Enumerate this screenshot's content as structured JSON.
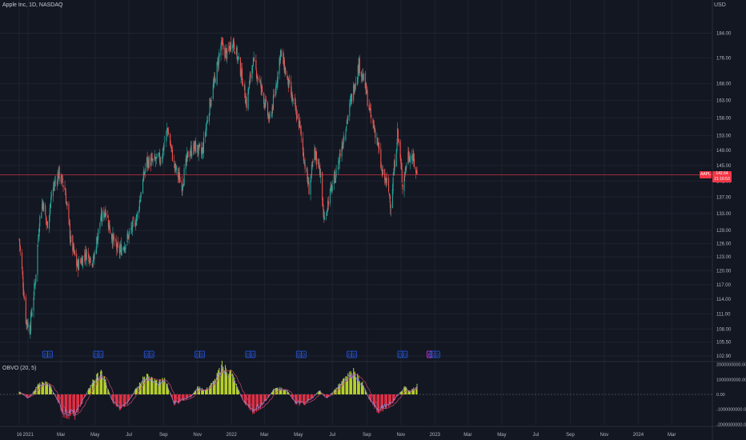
{
  "symbol_legend": "Apple Inc, 1D, NASDAQ",
  "currency": "USD",
  "current_price": {
    "ticker_badge": "AAPL",
    "value": "142.64",
    "time_left": "21:16:53",
    "level": 142.64
  },
  "price_axis": {
    "ticks": [
      "184.00",
      "176.00",
      "168.00",
      "163.00",
      "158.00",
      "153.00",
      "149.00",
      "145.00",
      "141.00",
      "137.00",
      "133.00",
      "129.00",
      "126.00",
      "123.00",
      "120.00",
      "117.00",
      "114.00",
      "111.00",
      "108.00",
      "105.50",
      "102.90"
    ]
  },
  "indicator": {
    "legend": "OBVO (20, 5)",
    "ticks": [
      "2000000000.00",
      "1000000000.00",
      "0.00",
      "-1000000000.00",
      "-2000000000.00"
    ]
  },
  "time_axis": {
    "labels": [
      "16",
      "2021",
      "Mar",
      "May",
      "Jul",
      "Sep",
      "Nov",
      "2022",
      "Mar",
      "May",
      "Jul",
      "Sep",
      "Nov",
      "2023",
      "Mar",
      "May",
      "Jul",
      "Sep",
      "Nov",
      "2024",
      "Mar"
    ]
  },
  "event_markers": [
    {
      "type": "dividend",
      "label": "D"
    },
    {
      "type": "dividend",
      "label": "D"
    },
    {
      "type": "dividend",
      "label": "D"
    },
    {
      "type": "dividend",
      "label": "D"
    },
    {
      "type": "dividend",
      "label": "D"
    },
    {
      "type": "dividend",
      "label": "D"
    },
    {
      "type": "dividend",
      "label": "D"
    },
    {
      "type": "dividend",
      "label": "D"
    },
    {
      "type": "dividend",
      "label": "D"
    },
    {
      "type": "earnings",
      "label": "E"
    }
  ],
  "colors": {
    "background": "#131722",
    "up": "#26a69a",
    "down": "#ef5350",
    "price_line": "#f23645",
    "osc_positive": "#b7d12a",
    "osc_negative": "#e03045",
    "fast_line": "#8f8bd8",
    "slow_line": "#c8476a",
    "dividend_marker": "#2962ff",
    "earnings_marker": "#e040fb"
  },
  "chart_data": {
    "type": "candlestick",
    "title": "Apple Inc, 1D, NASDAQ",
    "ylabel": "USD",
    "ylim": [
      102.9,
      186
    ],
    "price_path": [
      [
        "2020-12-16",
        127
      ],
      [
        "2020-12-28",
        110
      ],
      [
        "2021-01-04",
        108
      ],
      [
        "2021-01-14",
        118
      ],
      [
        "2021-01-21",
        131
      ],
      [
        "2021-01-27",
        136
      ],
      [
        "2021-02-04",
        130
      ],
      [
        "2021-02-14",
        139
      ],
      [
        "2021-02-25",
        143
      ],
      [
        "2021-03-08",
        139
      ],
      [
        "2021-03-18",
        127
      ],
      [
        "2021-03-30",
        121
      ],
      [
        "2021-04-16",
        124
      ],
      [
        "2021-04-28",
        122
      ],
      [
        "2021-05-10",
        131
      ],
      [
        "2021-05-20",
        134
      ],
      [
        "2021-05-30",
        128
      ],
      [
        "2021-06-12",
        124
      ],
      [
        "2021-06-24",
        126
      ],
      [
        "2021-07-04",
        129
      ],
      [
        "2021-07-15",
        132
      ],
      [
        "2021-07-25",
        140
      ],
      [
        "2021-08-01",
        146
      ],
      [
        "2021-08-14",
        146
      ],
      [
        "2021-08-28",
        147
      ],
      [
        "2021-09-08",
        155
      ],
      [
        "2021-09-20",
        145
      ],
      [
        "2021-10-04",
        140
      ],
      [
        "2021-10-15",
        148
      ],
      [
        "2021-10-27",
        150
      ],
      [
        "2021-11-09",
        148
      ],
      [
        "2021-11-22",
        161
      ],
      [
        "2021-12-03",
        170
      ],
      [
        "2021-12-13",
        180
      ],
      [
        "2021-12-24",
        177
      ],
      [
        "2022-01-03",
        182
      ],
      [
        "2022-01-12",
        176
      ],
      [
        "2022-01-20",
        170
      ],
      [
        "2022-01-28",
        162
      ],
      [
        "2022-02-08",
        175
      ],
      [
        "2022-02-18",
        170
      ],
      [
        "2022-03-01",
        163
      ],
      [
        "2022-03-10",
        157
      ],
      [
        "2022-03-20",
        165
      ],
      [
        "2022-03-30",
        178
      ],
      [
        "2022-04-10",
        170
      ],
      [
        "2022-04-22",
        162
      ],
      [
        "2022-05-03",
        156
      ],
      [
        "2022-05-12",
        146
      ],
      [
        "2022-05-20",
        139
      ],
      [
        "2022-05-30",
        148
      ],
      [
        "2022-06-08",
        145
      ],
      [
        "2022-06-16",
        131
      ],
      [
        "2022-06-25",
        137
      ],
      [
        "2022-07-08",
        143
      ],
      [
        "2022-07-20",
        152
      ],
      [
        "2022-08-01",
        161
      ],
      [
        "2022-08-10",
        168
      ],
      [
        "2022-08-18",
        174
      ],
      [
        "2022-08-28",
        168
      ],
      [
        "2022-09-08",
        158
      ],
      [
        "2022-09-18",
        153
      ],
      [
        "2022-09-28",
        143
      ],
      [
        "2022-10-08",
        140
      ],
      [
        "2022-10-14",
        135
      ],
      [
        "2022-10-26",
        154
      ],
      [
        "2022-11-04",
        140
      ],
      [
        "2022-11-14",
        148
      ],
      [
        "2022-11-22",
        147
      ],
      [
        "2022-11-30",
        142.64
      ]
    ],
    "obvo_path": [
      [
        "2020-12-16",
        200
      ],
      [
        "2021-01-02",
        -300
      ],
      [
        "2021-01-20",
        700
      ],
      [
        "2021-02-05",
        900
      ],
      [
        "2021-02-20",
        -200
      ],
      [
        "2021-03-05",
        -1300
      ],
      [
        "2021-03-25",
        -1500
      ],
      [
        "2021-04-10",
        -400
      ],
      [
        "2021-04-28",
        1000
      ],
      [
        "2021-05-15",
        1500
      ],
      [
        "2021-05-30",
        -300
      ],
      [
        "2021-06-15",
        -1200
      ],
      [
        "2021-06-30",
        -600
      ],
      [
        "2021-07-12",
        300
      ],
      [
        "2021-08-01",
        1300
      ],
      [
        "2021-08-20",
        800
      ],
      [
        "2021-09-05",
        1000
      ],
      [
        "2021-09-20",
        -700
      ],
      [
        "2021-10-05",
        -400
      ],
      [
        "2021-10-20",
        -200
      ],
      [
        "2021-11-01",
        500
      ],
      [
        "2021-11-15",
        300
      ],
      [
        "2021-12-01",
        900
      ],
      [
        "2021-12-15",
        1900
      ],
      [
        "2022-01-01",
        1500
      ],
      [
        "2022-01-20",
        -300
      ],
      [
        "2022-02-05",
        -1200
      ],
      [
        "2022-02-20",
        -900
      ],
      [
        "2022-03-05",
        -400
      ],
      [
        "2022-03-20",
        500
      ],
      [
        "2022-04-10",
        300
      ],
      [
        "2022-04-28",
        -700
      ],
      [
        "2022-05-15",
        -600
      ],
      [
        "2022-05-28",
        -200
      ],
      [
        "2022-06-08",
        300
      ],
      [
        "2022-06-20",
        -300
      ],
      [
        "2022-07-05",
        300
      ],
      [
        "2022-07-25",
        1100
      ],
      [
        "2022-08-08",
        1500
      ],
      [
        "2022-08-22",
        900
      ],
      [
        "2022-09-05",
        -300
      ],
      [
        "2022-09-20",
        -1100
      ],
      [
        "2022-10-05",
        -900
      ],
      [
        "2022-10-18",
        -500
      ],
      [
        "2022-10-30",
        100
      ],
      [
        "2022-11-08",
        500
      ],
      [
        "2022-11-18",
        200
      ],
      [
        "2022-11-30",
        600
      ]
    ]
  }
}
